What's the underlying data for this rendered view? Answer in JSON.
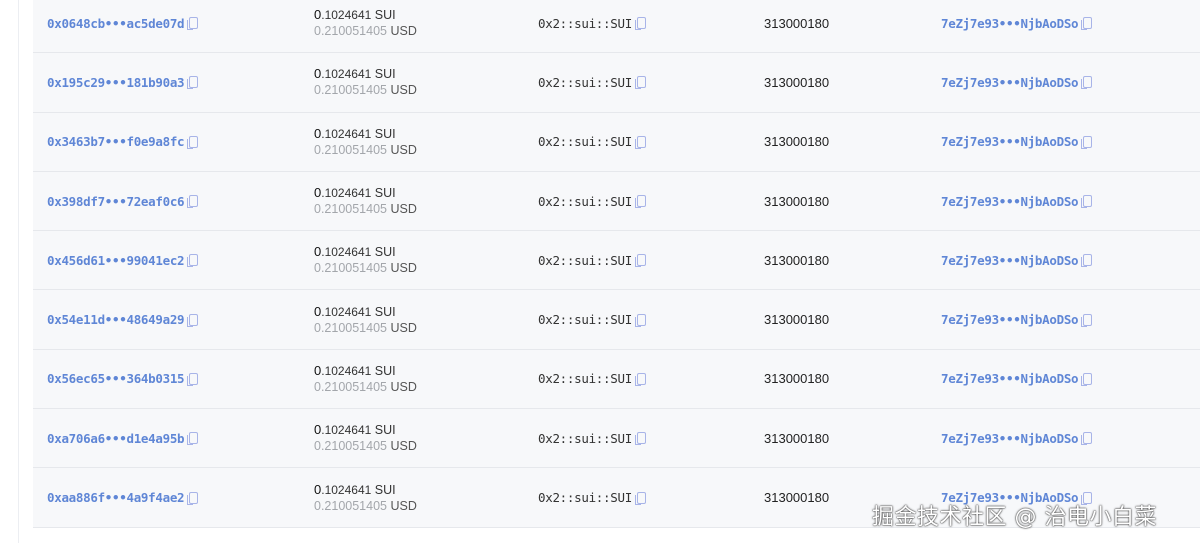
{
  "rows": [
    {
      "object_id": "0x0648cb•••ac5de07d",
      "amount_int": "0",
      "amount_frac": ".1024641",
      "amount_unit": "SUI",
      "usd_value": "0.210051405",
      "usd_unit": "USD",
      "coin_type": "0x2::sui::SUI",
      "version": "313000180",
      "tx": "7eZj7e93•••NjbAoDSo"
    },
    {
      "object_id": "0x195c29•••181b90a3",
      "amount_int": "0",
      "amount_frac": ".1024641",
      "amount_unit": "SUI",
      "usd_value": "0.210051405",
      "usd_unit": "USD",
      "coin_type": "0x2::sui::SUI",
      "version": "313000180",
      "tx": "7eZj7e93•••NjbAoDSo"
    },
    {
      "object_id": "0x3463b7•••f0e9a8fc",
      "amount_int": "0",
      "amount_frac": ".1024641",
      "amount_unit": "SUI",
      "usd_value": "0.210051405",
      "usd_unit": "USD",
      "coin_type": "0x2::sui::SUI",
      "version": "313000180",
      "tx": "7eZj7e93•••NjbAoDSo"
    },
    {
      "object_id": "0x398df7•••72eaf0c6",
      "amount_int": "0",
      "amount_frac": ".1024641",
      "amount_unit": "SUI",
      "usd_value": "0.210051405",
      "usd_unit": "USD",
      "coin_type": "0x2::sui::SUI",
      "version": "313000180",
      "tx": "7eZj7e93•••NjbAoDSo"
    },
    {
      "object_id": "0x456d61•••99041ec2",
      "amount_int": "0",
      "amount_frac": ".1024641",
      "amount_unit": "SUI",
      "usd_value": "0.210051405",
      "usd_unit": "USD",
      "coin_type": "0x2::sui::SUI",
      "version": "313000180",
      "tx": "7eZj7e93•••NjbAoDSo"
    },
    {
      "object_id": "0x54e11d•••48649a29",
      "amount_int": "0",
      "amount_frac": ".1024641",
      "amount_unit": "SUI",
      "usd_value": "0.210051405",
      "usd_unit": "USD",
      "coin_type": "0x2::sui::SUI",
      "version": "313000180",
      "tx": "7eZj7e93•••NjbAoDSo"
    },
    {
      "object_id": "0x56ec65•••364b0315",
      "amount_int": "0",
      "amount_frac": ".1024641",
      "amount_unit": "SUI",
      "usd_value": "0.210051405",
      "usd_unit": "USD",
      "coin_type": "0x2::sui::SUI",
      "version": "313000180",
      "tx": "7eZj7e93•••NjbAoDSo"
    },
    {
      "object_id": "0xa706a6•••d1e4a95b",
      "amount_int": "0",
      "amount_frac": ".1024641",
      "amount_unit": "SUI",
      "usd_value": "0.210051405",
      "usd_unit": "USD",
      "coin_type": "0x2::sui::SUI",
      "version": "313000180",
      "tx": "7eZj7e93•••NjbAoDSo"
    },
    {
      "object_id": "0xaa886f•••4a9f4ae2",
      "amount_int": "0",
      "amount_frac": ".1024641",
      "amount_unit": "SUI",
      "usd_value": "0.210051405",
      "usd_unit": "USD",
      "coin_type": "0x2::sui::SUI",
      "version": "313000180",
      "tx": "7eZj7e93•••NjbAoDSo"
    }
  ],
  "watermark": "掘金技术社区 @ 治电小白菜",
  "colors": {
    "link": "#5f86d6",
    "row_bg": "#f7f8fa",
    "muted": "#a3a6ab"
  }
}
